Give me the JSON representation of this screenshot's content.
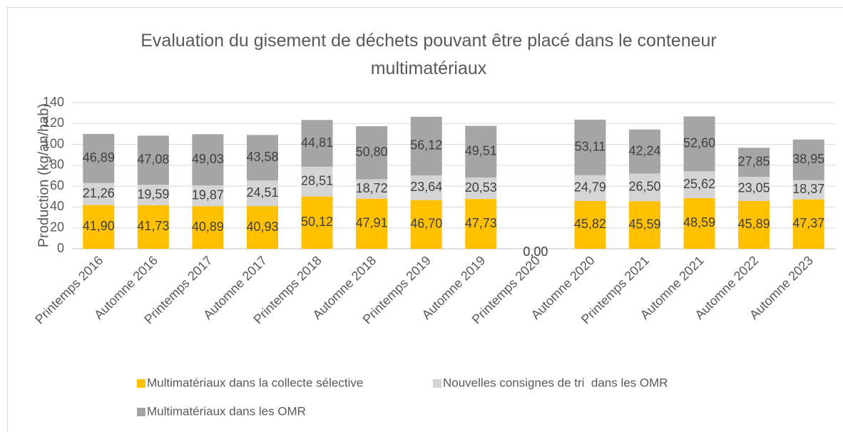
{
  "chart_data": {
    "type": "stacked_bar",
    "title": "Evaluation du gisement de déchets pouvant être placé dans le conteneur multimatériaux",
    "y_label": "Production (kg/an/hab)",
    "categories": [
      "Printemps 2016",
      "Automne 2016",
      "Printemps 2017",
      "Automne 2017",
      "Printemps 2018",
      "Automne 2018",
      "Printemps 2019",
      "Automne 2019",
      "Printemps 2020",
      "Automne 2020",
      "Printemps 2021",
      "Automne 2021",
      "Automne 2022",
      "Automne 2023"
    ],
    "series": [
      {
        "name": "Multimatériaux dans la collecte sélective",
        "color": "#ffc000",
        "values": [
          41.9,
          41.73,
          40.89,
          40.93,
          50.12,
          47.91,
          46.7,
          47.73,
          0,
          45.82,
          45.59,
          48.59,
          45.89,
          47.37
        ],
        "value_labels": [
          "41,90",
          "41,73",
          "40,89",
          "40,93",
          "50,12",
          "47,91",
          "46,70",
          "47,73",
          "0,00",
          "45,82",
          "45,59",
          "48,59",
          "45,89",
          "47,37"
        ]
      },
      {
        "name": "Nouvelles consignes de tri  dans les OMR",
        "color": "#d4d4d4",
        "values": [
          21.26,
          19.59,
          19.87,
          24.51,
          28.51,
          18.72,
          23.64,
          20.53,
          null,
          24.79,
          26.5,
          25.62,
          23.05,
          18.37
        ],
        "value_labels": [
          "21,26",
          "19,59",
          "19,87",
          "24,51",
          "28,51",
          "18,72",
          "23,64",
          "20,53",
          null,
          "24,79",
          "26,50",
          "25,62",
          "23,05",
          "18,37"
        ]
      },
      {
        "name": "Multimatériaux dans les OMR",
        "color": "#a5a5a5",
        "values": [
          46.89,
          47.08,
          49.03,
          43.58,
          44.81,
          50.8,
          56.12,
          49.51,
          null,
          53.11,
          42.24,
          52.6,
          27.85,
          38.95
        ],
        "value_labels": [
          "46,89",
          "47,08",
          "49,03",
          "43,58",
          "44,81",
          "50,80",
          "56,12",
          "49,51",
          null,
          "53,11",
          "42,24",
          "52,60",
          "27,85",
          "38,95"
        ]
      }
    ],
    "ylim": [
      0,
      140
    ],
    "yticks": [
      0,
      20,
      40,
      60,
      80,
      100,
      120,
      140
    ],
    "grid": true,
    "legend": "bottom"
  }
}
